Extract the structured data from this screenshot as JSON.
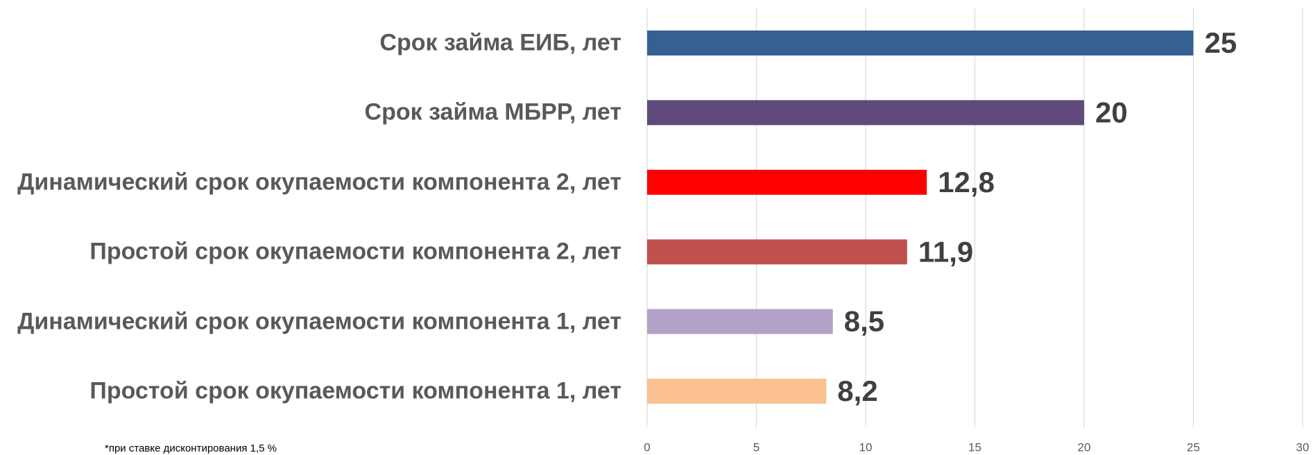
{
  "chart_data": {
    "type": "bar",
    "orientation": "horizontal",
    "categories": [
      "Срок займа ЕИБ, лет",
      "Срок займа МБРР, лет",
      "Динамический срок окупаемости компонента 2, лет",
      "Простой срок окупаемости компонента 2, лет",
      "Динамический срок окупаемости компонента 1, лет",
      "Простой срок окупаемости компонента 1, лет"
    ],
    "values": [
      25,
      20,
      12.8,
      11.9,
      8.5,
      8.2
    ],
    "value_labels": [
      "25",
      "20",
      "12,8",
      "11,9",
      "8,5",
      "8,2"
    ],
    "colors": [
      "#366092",
      "#604a7b",
      "#ff0000",
      "#c0504d",
      "#b2a2c7",
      "#fac090"
    ],
    "xlim": [
      0,
      30
    ],
    "xticks": [
      0,
      5,
      10,
      15,
      20,
      25,
      30
    ],
    "grid": true,
    "annotation": "*при ставке дисконтирования 1,5 %"
  }
}
